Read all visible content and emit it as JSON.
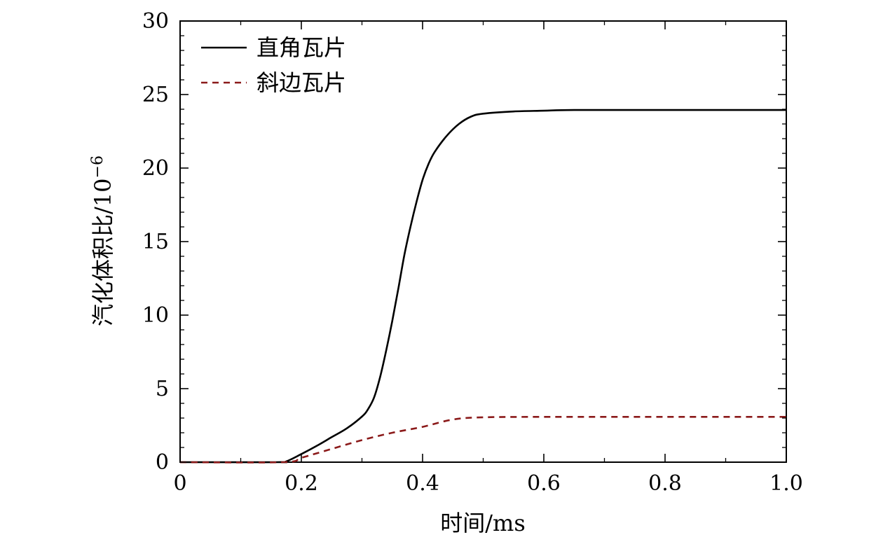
{
  "chart_data": {
    "type": "line",
    "title": "",
    "xlabel": "时间/ms",
    "ylabel": "汽化体积比/10",
    "ylabel_exponent": "−6",
    "xlim": [
      0,
      1.0
    ],
    "ylim": [
      0,
      30
    ],
    "x_ticks": [
      0,
      0.2,
      0.4,
      0.6,
      0.8,
      1.0
    ],
    "x_tick_labels": [
      "0",
      "0.2",
      "0.4",
      "0.6",
      "0.8",
      "1.0"
    ],
    "y_ticks": [
      0,
      5,
      10,
      15,
      20,
      25,
      30
    ],
    "y_tick_labels": [
      "0",
      "5",
      "10",
      "15",
      "20",
      "25",
      "30"
    ],
    "grid": false,
    "legend_position": "top-left",
    "series": [
      {
        "name": "直角瓦片",
        "color": "#000000",
        "style": "solid",
        "points": [
          [
            0,
            0
          ],
          [
            0.16,
            0
          ],
          [
            0.175,
            0.05
          ],
          [
            0.2,
            0.55
          ],
          [
            0.225,
            1.1
          ],
          [
            0.25,
            1.7
          ],
          [
            0.275,
            2.3
          ],
          [
            0.3,
            3.1
          ],
          [
            0.31,
            3.6
          ],
          [
            0.32,
            4.4
          ],
          [
            0.33,
            5.8
          ],
          [
            0.34,
            7.6
          ],
          [
            0.35,
            9.6
          ],
          [
            0.36,
            11.8
          ],
          [
            0.37,
            14.1
          ],
          [
            0.38,
            16.0
          ],
          [
            0.39,
            17.7
          ],
          [
            0.4,
            19.2
          ],
          [
            0.41,
            20.3
          ],
          [
            0.42,
            21.1
          ],
          [
            0.44,
            22.2
          ],
          [
            0.46,
            23.0
          ],
          [
            0.48,
            23.5
          ],
          [
            0.5,
            23.7
          ],
          [
            0.55,
            23.85
          ],
          [
            0.6,
            23.9
          ],
          [
            0.65,
            23.95
          ],
          [
            0.8,
            23.95
          ],
          [
            1.0,
            23.95
          ]
        ]
      },
      {
        "name": "斜边瓦片",
        "color": "#8b1a1a",
        "style": "dashed",
        "points": [
          [
            0,
            0
          ],
          [
            0.17,
            0
          ],
          [
            0.2,
            0.3
          ],
          [
            0.25,
            0.9
          ],
          [
            0.3,
            1.5
          ],
          [
            0.35,
            2.0
          ],
          [
            0.4,
            2.4
          ],
          [
            0.45,
            2.9
          ],
          [
            0.5,
            3.05
          ],
          [
            0.6,
            3.08
          ],
          [
            0.8,
            3.08
          ],
          [
            1.0,
            3.08
          ]
        ]
      }
    ]
  }
}
